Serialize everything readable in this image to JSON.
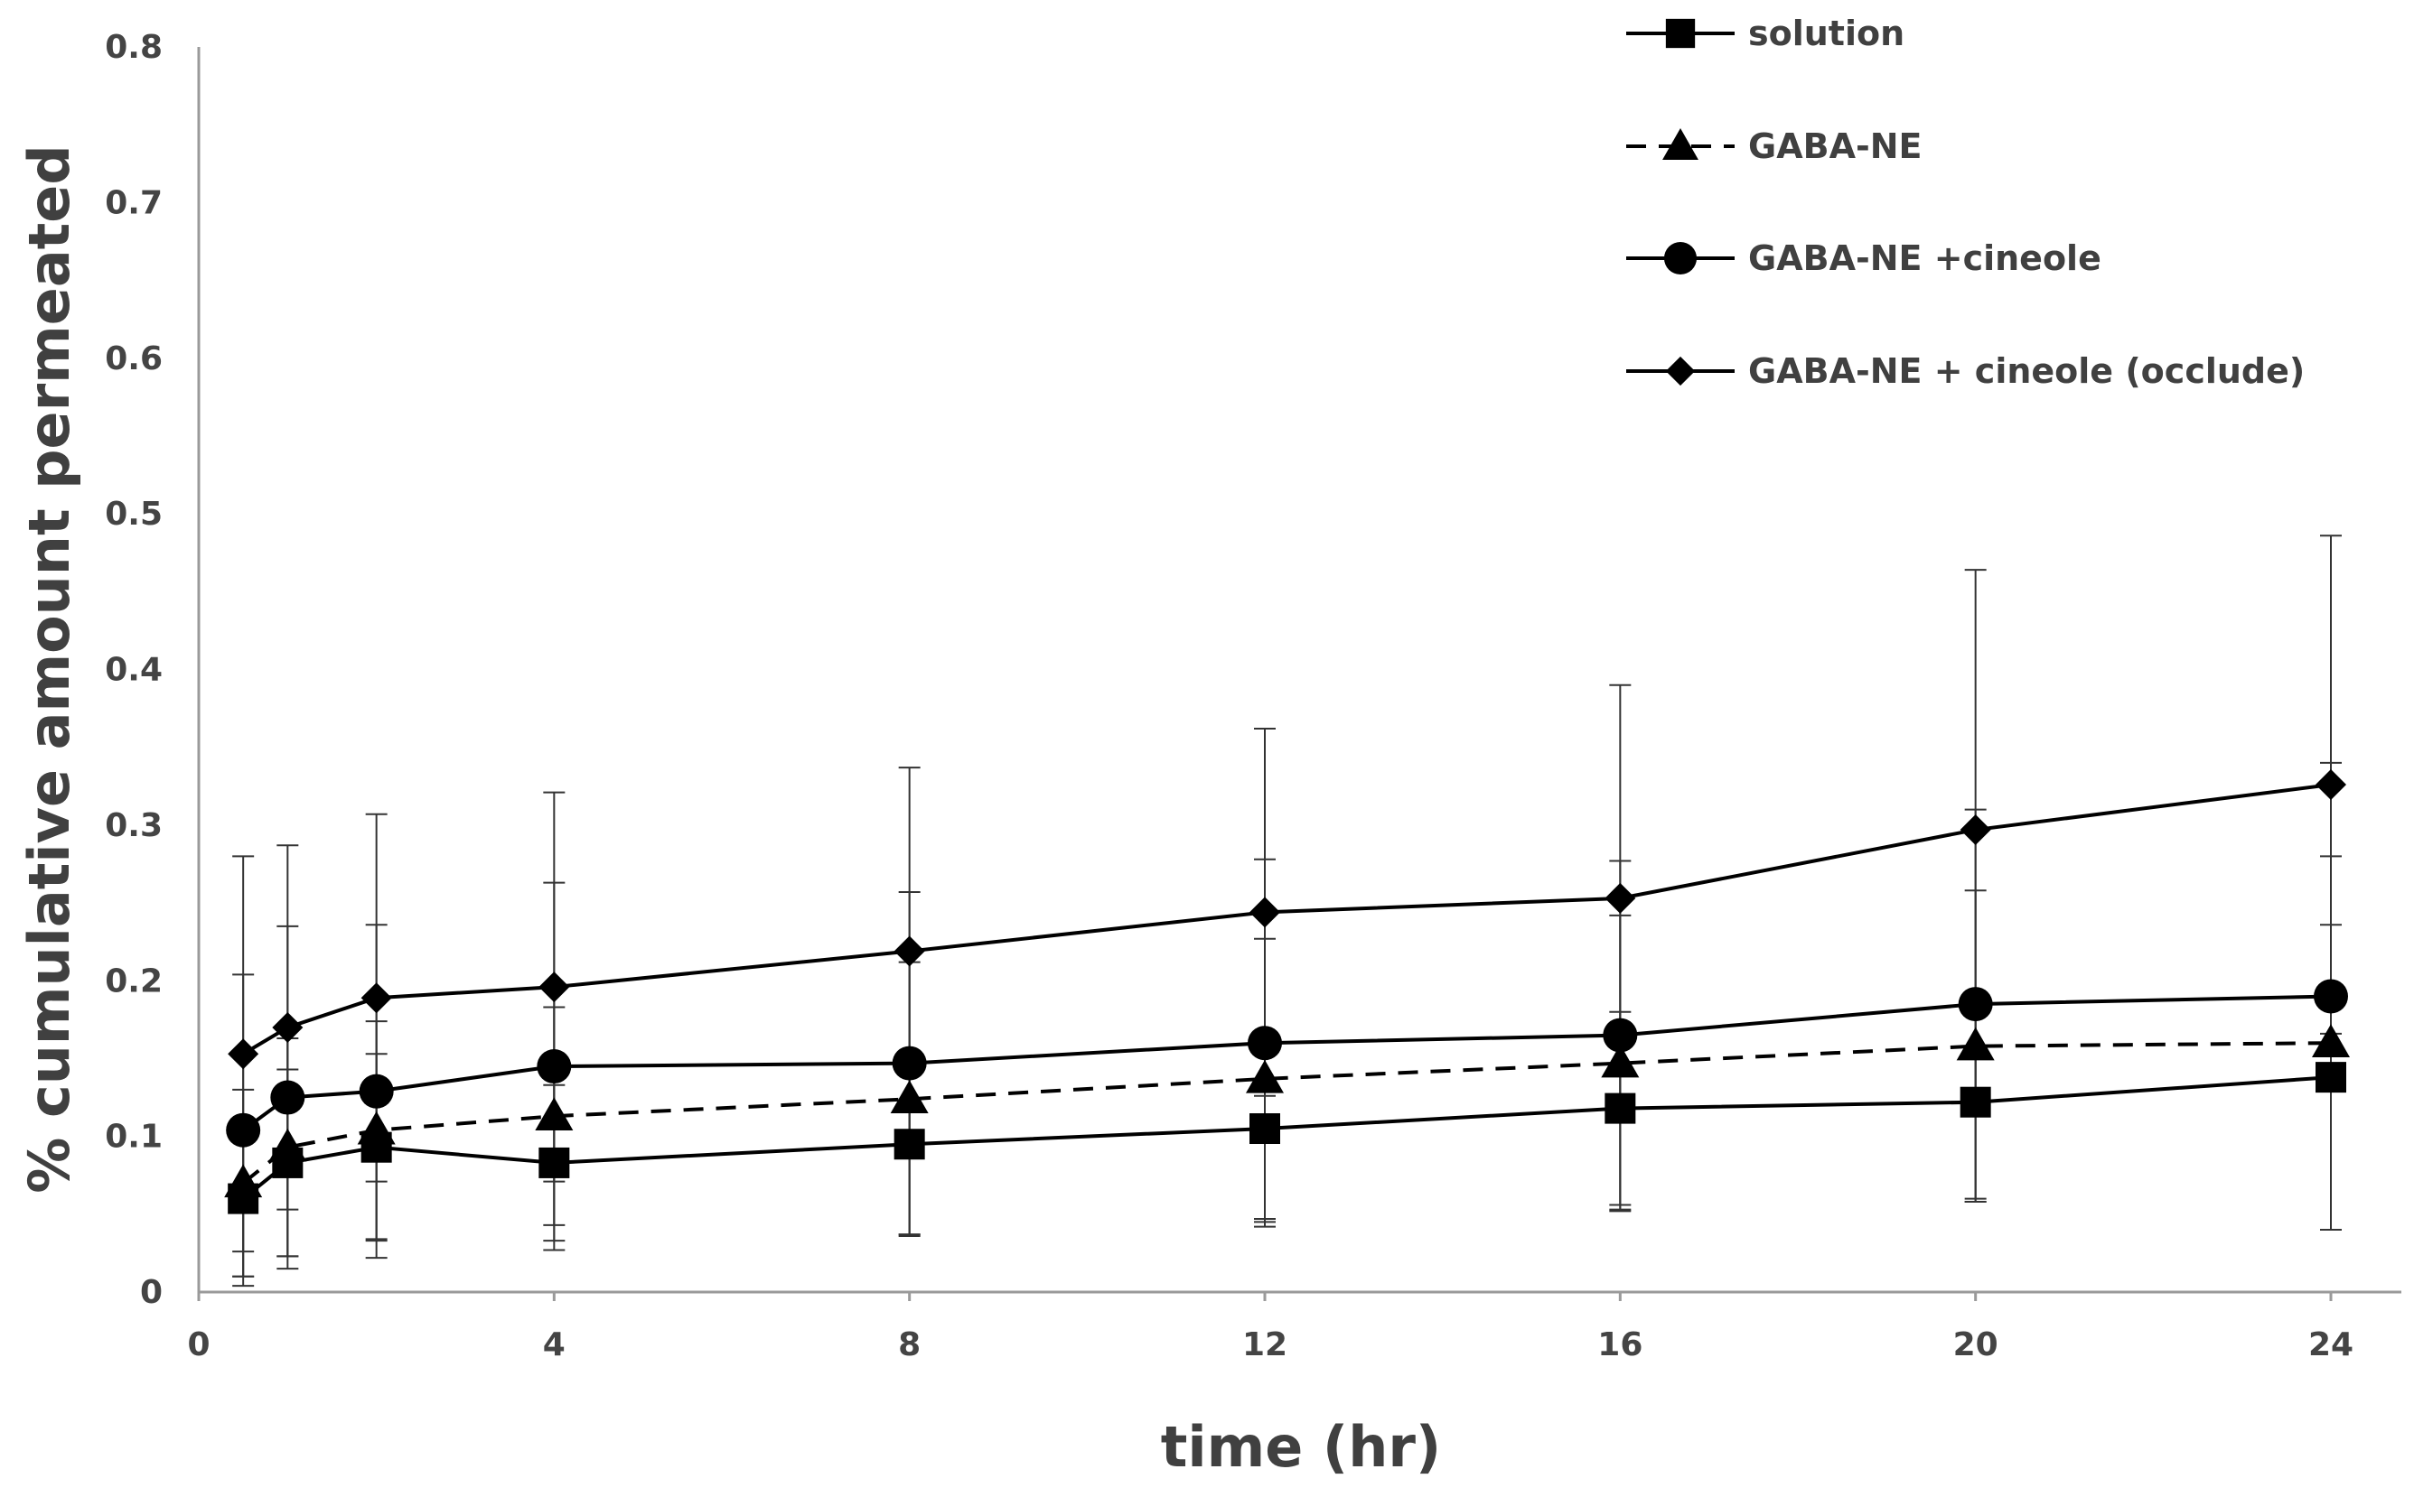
{
  "chart_data": {
    "type": "line",
    "title": "",
    "xlabel": "time (hr)",
    "ylabel": "% cumulative amount permeated",
    "xlim": [
      0,
      24
    ],
    "ylim": [
      0,
      0.8
    ],
    "xticks": [
      0,
      4,
      8,
      12,
      16,
      20,
      24
    ],
    "xtick_labels": [
      "0",
      "4",
      "8",
      "12",
      "16",
      "20",
      "24"
    ],
    "yticks": [
      0,
      0.1,
      0.2,
      0.3,
      0.4,
      0.5,
      0.6,
      0.7,
      0.8
    ],
    "ytick_labels": [
      "0",
      "0.1",
      "0.2",
      "0.3",
      "0.4",
      "0.5",
      "0.6",
      "0.7",
      "0.8"
    ],
    "grid": false,
    "legend_position": "top-right",
    "x": [
      0.5,
      1,
      2,
      4,
      8,
      12,
      16,
      20,
      24
    ],
    "series": [
      {
        "name": "solution",
        "marker": "square",
        "line": "solid",
        "color": "#000000",
        "values": [
          0.06,
          0.083,
          0.093,
          0.083,
          0.095,
          0.105,
          0.118,
          0.122,
          0.138
        ],
        "error": [
          0.05,
          0.06,
          0.06,
          0.05,
          0.058,
          0.06,
          0.062,
          0.064,
          0.098
        ]
      },
      {
        "name": "GABA-NE",
        "marker": "triangle",
        "line": "dashed",
        "color": "#000000",
        "values": [
          0.07,
          0.093,
          0.104,
          0.113,
          0.124,
          0.137,
          0.147,
          0.158,
          0.16
        ],
        "error": [
          0.06,
          0.07,
          0.07,
          0.07,
          0.088,
          0.09,
          0.095,
          0.1,
          0.12
        ]
      },
      {
        "name": "GABA-NE +cineole",
        "marker": "circle",
        "line": "solid",
        "color": "#000000",
        "values": [
          0.104,
          0.125,
          0.129,
          0.145,
          0.147,
          0.16,
          0.165,
          0.185,
          0.19
        ],
        "error": [
          0.1,
          0.11,
          0.107,
          0.118,
          0.11,
          0.118,
          0.112,
          0.125,
          0.15
        ]
      },
      {
        "name": "GABA-NE + cineole (occlude)",
        "marker": "diamond",
        "line": "solid",
        "color": "#000000",
        "values": [
          0.153,
          0.17,
          0.189,
          0.196,
          0.219,
          0.244,
          0.253,
          0.297,
          0.326
        ],
        "error": [
          0.127,
          0.117,
          0.118,
          0.125,
          0.118,
          0.118,
          0.137,
          0.167,
          0.16
        ]
      }
    ]
  }
}
